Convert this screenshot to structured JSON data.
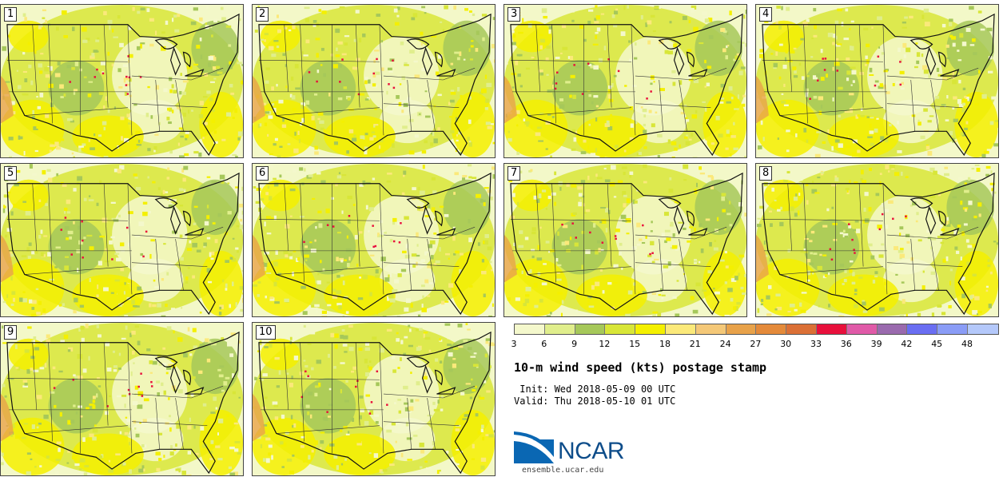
{
  "panels": [
    {
      "label": "1"
    },
    {
      "label": "2"
    },
    {
      "label": "3"
    },
    {
      "label": "4"
    },
    {
      "label": "5"
    },
    {
      "label": "6"
    },
    {
      "label": "7"
    },
    {
      "label": "8"
    },
    {
      "label": "9"
    },
    {
      "label": "10"
    }
  ],
  "legend": {
    "colors": [
      "#f4f8cc",
      "#e0ee8c",
      "#a6c85a",
      "#d8e638",
      "#f4f000",
      "#fbe97a",
      "#f4c878",
      "#e8a24a",
      "#e48a3a",
      "#db7036",
      "#e8103c",
      "#e05aa8",
      "#9a6aae",
      "#6a6ef2",
      "#8a9cf6",
      "#b4c8fa"
    ],
    "ticks": [
      "3",
      "6",
      "9",
      "12",
      "15",
      "18",
      "21",
      "24",
      "27",
      "30",
      "33",
      "36",
      "39",
      "42",
      "45",
      "48"
    ]
  },
  "title": "10-m wind speed (kts) postage stamp",
  "init": " Init: Wed 2018-05-09 00 UTC",
  "valid": "Valid: Thu 2018-05-10 01 UTC",
  "logo": {
    "text": "NCAR",
    "url": "ensemble.ucar.edu"
  }
}
